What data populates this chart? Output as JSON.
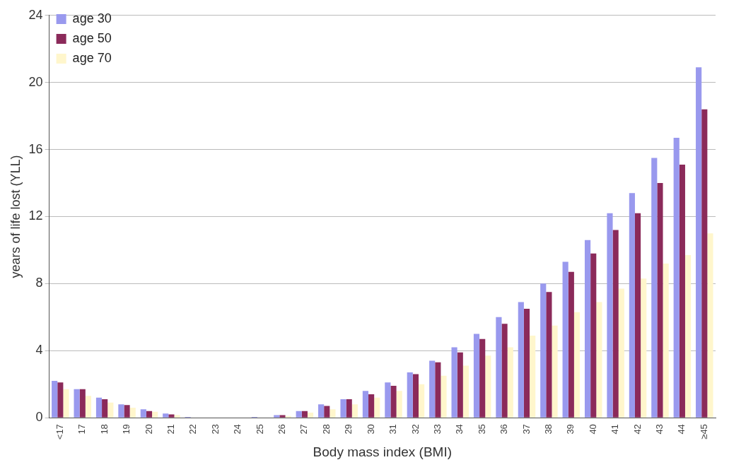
{
  "chart_data": {
    "type": "bar",
    "xlabel": "Body mass index (BMI)",
    "ylabel": "years of life lost (YLL)",
    "categories": [
      "<17",
      "17",
      "18",
      "19",
      "20",
      "21",
      "22",
      "23",
      "24",
      "25",
      "26",
      "27",
      "28",
      "29",
      "30",
      "31",
      "32",
      "33",
      "34",
      "35",
      "36",
      "37",
      "38",
      "39",
      "40",
      "41",
      "42",
      "43",
      "44",
      "≥45"
    ],
    "series": [
      {
        "name": "age 30",
        "color": "#9999ee",
        "values": [
          2.2,
          1.7,
          1.2,
          0.8,
          0.5,
          0.25,
          0.05,
          0,
          0,
          0.05,
          0.15,
          0.4,
          0.8,
          1.1,
          1.6,
          2.1,
          2.7,
          3.4,
          4.2,
          5.0,
          6.0,
          6.9,
          8.0,
          9.3,
          10.6,
          12.2,
          13.4,
          15.5,
          16.7,
          20.9
        ]
      },
      {
        "name": "age 50",
        "color": "#8b2a5a",
        "values": [
          2.1,
          1.7,
          1.1,
          0.75,
          0.4,
          0.2,
          null,
          0,
          0,
          null,
          0.15,
          0.4,
          0.7,
          1.1,
          1.4,
          1.9,
          2.6,
          3.3,
          3.9,
          4.7,
          5.6,
          6.5,
          7.5,
          8.7,
          9.8,
          11.2,
          12.2,
          14.0,
          15.1,
          18.4
        ]
      },
      {
        "name": "age 70",
        "color": "#fff6cc",
        "values": [
          1.7,
          1.3,
          0.9,
          0.6,
          0.35,
          0.15,
          null,
          0,
          0,
          null,
          0.1,
          0.3,
          0.5,
          0.8,
          1.2,
          1.6,
          2.0,
          2.5,
          3.1,
          3.7,
          4.2,
          4.9,
          5.5,
          6.3,
          6.9,
          7.7,
          8.3,
          9.2,
          9.7,
          11.0
        ]
      }
    ],
    "ylim": [
      0,
      24
    ],
    "yticks": [
      0,
      4,
      8,
      12,
      16,
      20,
      24
    ],
    "grid": "y",
    "legend": "top left"
  }
}
